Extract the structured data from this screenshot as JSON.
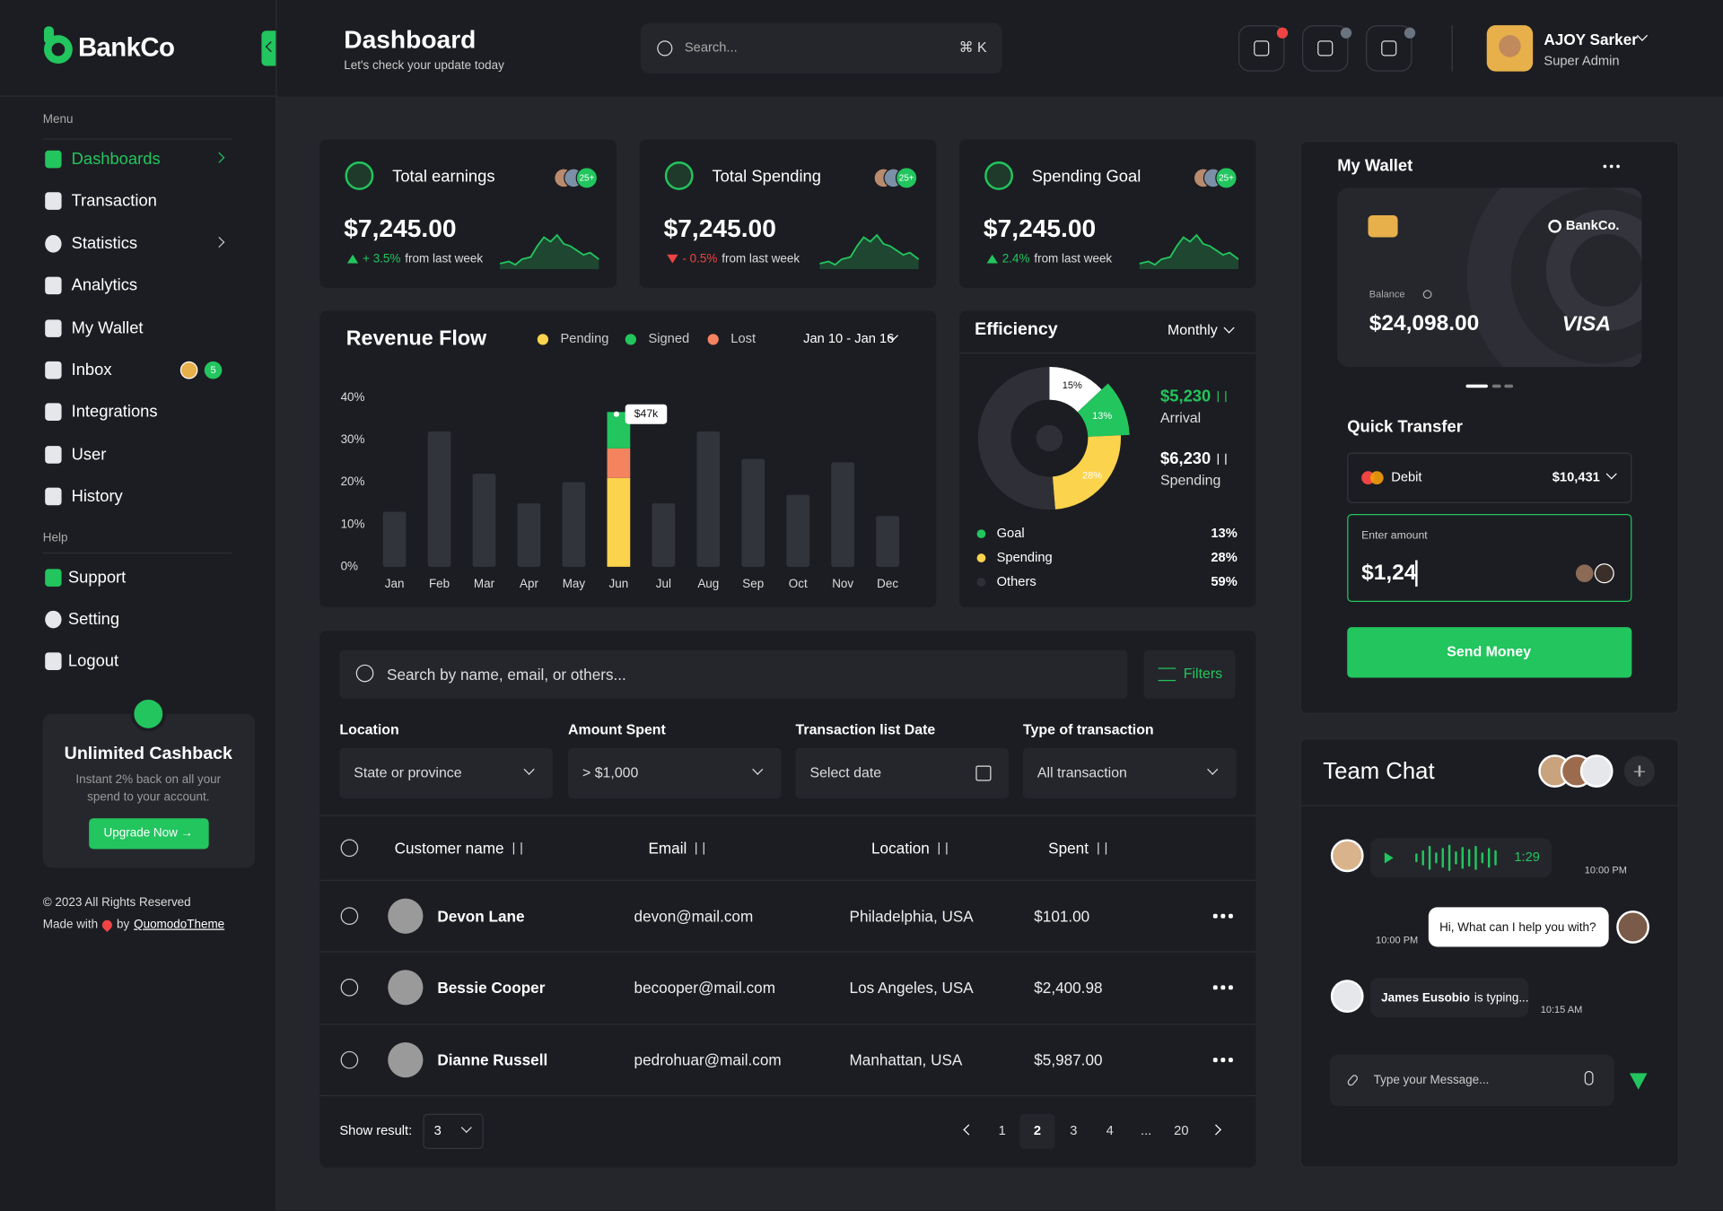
{
  "brand": "BankCo",
  "header": {
    "title": "Dashboard",
    "subtitle": "Let's check your update today",
    "search_placeholder": "Search...",
    "search_shortcut": "⌘ K",
    "user_name": "AJOY Sarker",
    "user_role": "Super Admin"
  },
  "sidebar": {
    "menu_label": "Menu",
    "menu": [
      "Dashboards",
      "Transaction",
      "Statistics",
      "Analytics",
      "My Wallet",
      "Inbox",
      "Integrations",
      "User",
      "History"
    ],
    "inbox_badge": "5",
    "help_label": "Help",
    "help": [
      "Support",
      "Setting",
      "Logout"
    ],
    "promo": {
      "title": "Unlimited Cashback",
      "text": "Instant 2% back on all your spend to your account.",
      "button": "Upgrade Now →"
    },
    "copyright": "© 2023 All Rights Reserved",
    "made_with": "Made with",
    "by": "by",
    "author": "QuomodoTheme"
  },
  "stats": [
    {
      "title": "Total earnings",
      "avatars_badge": "25+",
      "amount": "$7,245.00",
      "change": "+ 3.5%",
      "change_color": "#22c55e",
      "change_note": "from last week"
    },
    {
      "title": "Total Spending",
      "avatars_badge": "25+",
      "amount": "$7,245.00",
      "change": "- 0.5%",
      "change_color": "#ef4444",
      "change_note": "from last week"
    },
    {
      "title": "Spending Goal",
      "avatars_badge": "25+",
      "amount": "$7,245.00",
      "change": "2.4%",
      "change_color": "#22c55e",
      "change_note": "from last week"
    }
  ],
  "chart_data": [
    {
      "type": "bar",
      "title": "Revenue Flow",
      "date_range": "Jan 10 - Jan 16",
      "categories": [
        "Jan",
        "Feb",
        "Mar",
        "Apr",
        "May",
        "Jun",
        "Jul",
        "Aug",
        "Sep",
        "Oct",
        "Nov",
        "Dec"
      ],
      "values": [
        13,
        32,
        22,
        15,
        20,
        null,
        15,
        32,
        25.5,
        17,
        24.7,
        12
      ],
      "color": "#32343c",
      "series": [
        {
          "name": "Pending",
          "color": "#fcd34d",
          "values": [
            null,
            null,
            null,
            null,
            null,
            21,
            null,
            null,
            null,
            null,
            null,
            null
          ]
        },
        {
          "name": "Lost",
          "color": "#f4845f",
          "values": [
            null,
            null,
            null,
            null,
            null,
            7,
            null,
            null,
            null,
            null,
            null,
            null
          ]
        },
        {
          "name": "Signed",
          "color": "#22c55e",
          "values": [
            null,
            null,
            null,
            null,
            null,
            8.6,
            null,
            null,
            null,
            null,
            null,
            null
          ]
        }
      ],
      "ylim": [
        0,
        40
      ],
      "yticks": [
        {
          "value": 0,
          "label": "0%"
        },
        {
          "value": 10,
          "label": "10%"
        },
        {
          "value": 20,
          "label": "20%"
        },
        {
          "value": 30,
          "label": "30%"
        },
        {
          "value": 40,
          "label": "40%"
        }
      ],
      "annotation": "$47k"
    },
    {
      "type": "pie",
      "title": "Efficiency",
      "period": "Monthly",
      "categories": [
        "Goal",
        "Spending",
        "Others"
      ],
      "values": [
        13,
        28,
        59
      ],
      "value_labels": [
        "13%",
        "28%",
        "59%"
      ],
      "colors": [
        "#22c55e",
        "#fcd34d",
        "#2f3037"
      ],
      "highlight": {
        "value": 15,
        "label": "15%",
        "color": "#ffffff"
      },
      "arrival": "$5,230",
      "arrival_label": "Arrival",
      "spending": "$6,230",
      "spending_label": "Spending"
    }
  ],
  "wallet": {
    "title": "My Wallet",
    "balance_label": "Balance",
    "balance": "$24,098.00",
    "card_brand": "BankCo.",
    "card_network": "VISA",
    "quick_transfer": "Quick Transfer",
    "account": "Debit",
    "account_amount": "$10,431",
    "amount_label": "Enter amount",
    "amount": "$1,24",
    "button": "Send Money"
  },
  "transactions": {
    "search_placeholder": "Search by name, email, or others...",
    "filters_button": "Filters",
    "filters": [
      {
        "label": "Location",
        "value": "State or province"
      },
      {
        "label": "Amount Spent",
        "value": "> $1,000"
      },
      {
        "label": "Transaction list Date",
        "value": "Select date"
      },
      {
        "label": "Type of transaction",
        "value": "All transaction"
      }
    ],
    "columns": [
      "Customer name",
      "Email",
      "Location",
      "Spent"
    ],
    "rows": [
      [
        "Devon Lane",
        "devon@mail.com",
        "Philadelphia, USA",
        "$101.00"
      ],
      [
        "Bessie Cooper",
        "becooper@mail.com",
        "Los Angeles, USA",
        "$2,400.98"
      ],
      [
        "Dianne Russell",
        "pedrohuar@mail.com",
        "Manhattan, USA",
        "$5,987.00"
      ]
    ],
    "show_result": "Show result:",
    "page_size": "3",
    "pages": [
      "1",
      "2",
      "3",
      "4",
      "...",
      "20"
    ],
    "current_page": "2"
  },
  "chat": {
    "title": "Team Chat",
    "messages": [
      {
        "duration": "1:29",
        "time": "10:00 PM"
      },
      {
        "text": "Hi, What can I help you with?",
        "time": "10:00 PM"
      },
      {
        "name": "James Eusobio",
        "text": "is typing...",
        "time": "10:15 AM"
      }
    ],
    "input_placeholder": "Type your Message..."
  }
}
